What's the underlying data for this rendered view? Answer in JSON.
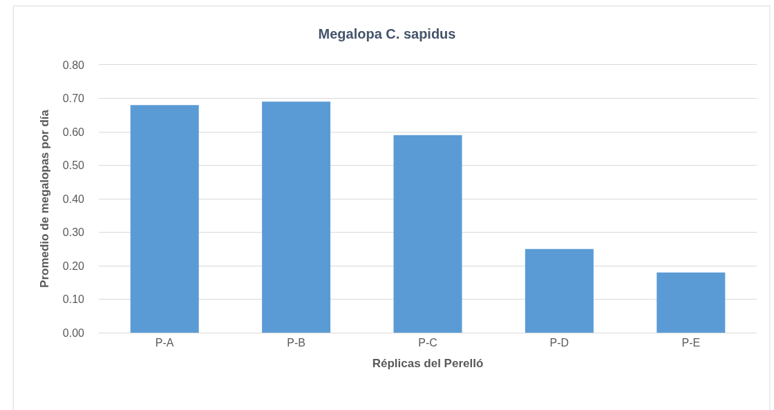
{
  "chart_data": {
    "type": "bar",
    "title": "Megalopa C. sapidus",
    "xlabel": "Réplicas del Perelló",
    "ylabel": "Promedio de megalopas por día",
    "categories": [
      "P-A",
      "P-B",
      "P-C",
      "P-D",
      "P-E"
    ],
    "values": [
      0.68,
      0.69,
      0.59,
      0.25,
      0.18
    ],
    "color": "#5b9bd5",
    "ylim": [
      0,
      0.8
    ],
    "yticks": [
      {
        "value": 0,
        "label": "0.00"
      },
      {
        "value": 0.1,
        "label": "0.10"
      },
      {
        "value": 0.2,
        "label": "0.20"
      },
      {
        "value": 0.3,
        "label": "0.30"
      },
      {
        "value": 0.4,
        "label": "0.40"
      },
      {
        "value": 0.5,
        "label": "0.50"
      },
      {
        "value": 0.6,
        "label": "0.60"
      },
      {
        "value": 0.7,
        "label": "0.70"
      },
      {
        "value": 0.8,
        "label": "0.80"
      }
    ],
    "grid": "y"
  }
}
